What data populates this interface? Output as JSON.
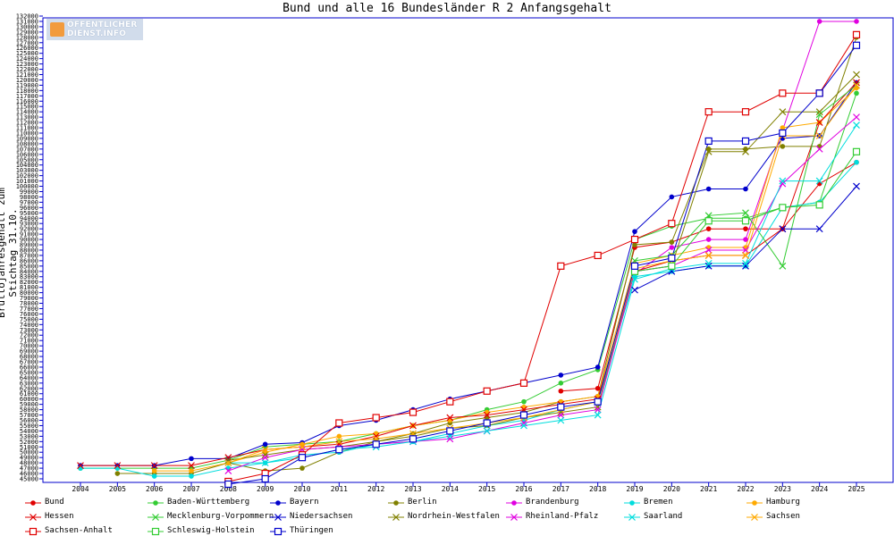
{
  "chart_data": {
    "type": "line",
    "title": "Bund und alle 16 Bundesländer R 2 Anfangsgehalt",
    "xlabel": "",
    "ylabel": "Bruttojahresgehalt zum Stichtag 31.10.",
    "ylim": [
      45000,
      132000
    ],
    "ytick_step": 1000,
    "grid": false,
    "legend_position": "bottom",
    "x": [
      "2004",
      "2005",
      "2006",
      "2007",
      "2008",
      "2009",
      "2010",
      "2011",
      "2012",
      "2013",
      "2014",
      "2015",
      "2016",
      "2017",
      "2018",
      "2019",
      "2020",
      "2021",
      "2022",
      "2023",
      "2024",
      "2025"
    ],
    "series": [
      {
        "name": "Bund",
        "color": "#e00000",
        "marker": "dot",
        "values": [
          null,
          null,
          null,
          null,
          null,
          null,
          null,
          null,
          null,
          null,
          null,
          null,
          null,
          61500,
          62000,
          88500,
          89500,
          92000,
          92000,
          92000,
          100500,
          104500
        ]
      },
      {
        "name": "Baden-Württemberg",
        "color": "#33cc33",
        "marker": "dot",
        "values": [
          47000,
          47000,
          47000,
          47000,
          48500,
          51000,
          51500,
          52000,
          53500,
          55000,
          56000,
          58000,
          59500,
          63000,
          65500,
          90000,
          92500,
          94000,
          94000,
          96000,
          97000,
          117500
        ]
      },
      {
        "name": "Bayern",
        "color": "#0000cc",
        "marker": "dot",
        "values": [
          47500,
          47500,
          47500,
          48800,
          48800,
          51500,
          51800,
          55000,
          56000,
          58000,
          60000,
          61500,
          63000,
          64500,
          66000,
          91500,
          98000,
          99500,
          99500,
          109000,
          109500,
          119500
        ]
      },
      {
        "name": "Berlin",
        "color": "#808000",
        "marker": "dot",
        "values": [
          null,
          46000,
          46000,
          46000,
          48000,
          46500,
          47000,
          50000,
          52000,
          53500,
          55500,
          56500,
          57500,
          59500,
          60500,
          89000,
          89500,
          107000,
          107000,
          107500,
          107500,
          128000
        ]
      },
      {
        "name": "Brandenburg",
        "color": "#e000e0",
        "marker": "dot",
        "values": [
          null,
          null,
          null,
          null,
          null,
          null,
          null,
          null,
          null,
          null,
          null,
          null,
          null,
          null,
          null,
          83500,
          88500,
          90000,
          90000,
          110500,
          131000,
          131000
        ]
      },
      {
        "name": "Bremen",
        "color": "#00dddd",
        "marker": "dot",
        "values": [
          47000,
          47000,
          45500,
          45500,
          47000,
          48000,
          49500,
          50000,
          51500,
          52000,
          53500,
          55000,
          56000,
          58000,
          59500,
          83000,
          84000,
          85000,
          85000,
          96000,
          97000,
          104500
        ]
      },
      {
        "name": "Hamburg",
        "color": "#ffaa00",
        "marker": "dot",
        "values": [
          null,
          null,
          46500,
          46500,
          48000,
          50000,
          51500,
          53000,
          53500,
          55000,
          56000,
          57500,
          58500,
          59500,
          60500,
          85500,
          87000,
          88500,
          88500,
          111000,
          112000,
          118500
        ]
      },
      {
        "name": "Hessen",
        "color": "#e00000",
        "marker": "x",
        "values": [
          47500,
          47500,
          47500,
          47500,
          49000,
          50500,
          51000,
          51500,
          53000,
          55000,
          56500,
          57000,
          58000,
          59000,
          60000,
          84000,
          86000,
          87000,
          87000,
          92000,
          112000,
          119500
        ]
      },
      {
        "name": "Mecklenburg-Vorpommern",
        "color": "#33cc33",
        "marker": "x",
        "values": [
          null,
          null,
          null,
          null,
          null,
          null,
          null,
          null,
          null,
          null,
          null,
          null,
          null,
          null,
          null,
          86000,
          87000,
          94500,
          95000,
          85000,
          113500,
          119000
        ]
      },
      {
        "name": "Niedersachsen",
        "color": "#0000cc",
        "marker": "x",
        "values": [
          null,
          null,
          null,
          null,
          null,
          null,
          null,
          null,
          null,
          null,
          null,
          null,
          null,
          null,
          null,
          80500,
          84000,
          85000,
          85000,
          92000,
          92000,
          100000
        ]
      },
      {
        "name": "Nordrhein-Westfalen",
        "color": "#808000",
        "marker": "x",
        "values": [
          null,
          null,
          null,
          null,
          48500,
          49500,
          50500,
          51000,
          52000,
          53000,
          54500,
          55000,
          56500,
          57500,
          58500,
          84000,
          85000,
          106500,
          106500,
          114000,
          114000,
          121000
        ]
      },
      {
        "name": "Rheinland-Pfalz",
        "color": "#e000e0",
        "marker": "x",
        "values": [
          null,
          null,
          null,
          null,
          46500,
          49000,
          50500,
          51000,
          51500,
          52000,
          52500,
          54000,
          55500,
          57000,
          58000,
          84000,
          85000,
          88000,
          88000,
          100500,
          107000,
          113000
        ]
      },
      {
        "name": "Saarland",
        "color": "#00dddd",
        "marker": "x",
        "values": [
          null,
          null,
          null,
          null,
          48000,
          48000,
          49000,
          50500,
          51000,
          52000,
          53000,
          54000,
          55000,
          56000,
          57000,
          82500,
          84500,
          85500,
          85500,
          101000,
          101000,
          111500
        ]
      },
      {
        "name": "Sachsen",
        "color": "#ffaa00",
        "marker": "x",
        "values": [
          null,
          null,
          null,
          null,
          48000,
          50500,
          51000,
          52000,
          52500,
          53500,
          54500,
          55500,
          56500,
          58000,
          59500,
          84500,
          86000,
          87000,
          87000,
          109500,
          109500,
          119000
        ]
      },
      {
        "name": "Sachsen-Anhalt",
        "color": "#e00000",
        "marker": "square",
        "values": [
          null,
          null,
          null,
          null,
          44500,
          46000,
          49500,
          55500,
          56500,
          57500,
          59500,
          61500,
          63000,
          85000,
          87000,
          90000,
          93000,
          114000,
          114000,
          117500,
          117500,
          128500
        ]
      },
      {
        "name": "Schleswig-Holstein",
        "color": "#33cc33",
        "marker": "square",
        "values": [
          null,
          null,
          null,
          null,
          null,
          null,
          null,
          null,
          null,
          null,
          null,
          null,
          null,
          null,
          null,
          84000,
          85000,
          93500,
          93500,
          96000,
          96500,
          106500
        ]
      },
      {
        "name": "Thüringen",
        "color": "#0000cc",
        "marker": "square",
        "values": [
          null,
          null,
          null,
          null,
          44000,
          45000,
          49000,
          50500,
          51500,
          52500,
          54000,
          55500,
          57000,
          58500,
          59500,
          85000,
          86500,
          108500,
          108500,
          110000,
          117500,
          126500
        ]
      }
    ]
  },
  "logo": {
    "line1": "ÖFFENTLICHER",
    "line2": "DIENST.INFO"
  }
}
